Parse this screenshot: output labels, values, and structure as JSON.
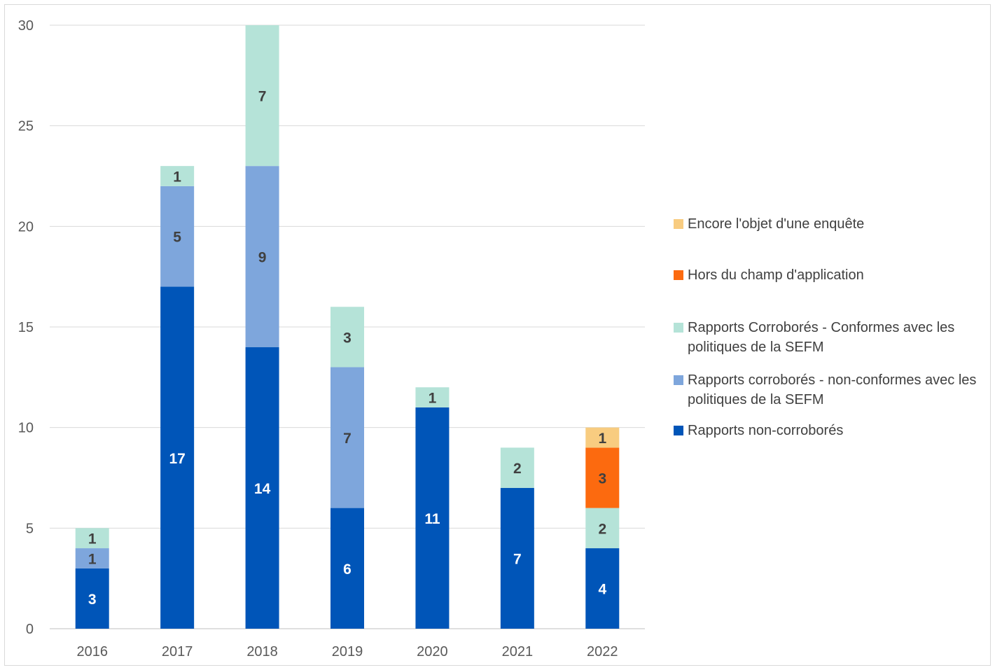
{
  "chart_data": {
    "type": "bar",
    "stacked": true,
    "categories": [
      "2016",
      "2017",
      "2018",
      "2019",
      "2020",
      "2021",
      "2022"
    ],
    "series": [
      {
        "name": "Rapports non-corroborés",
        "color": "#0055b8",
        "label_color": "#ffffff",
        "values": [
          3,
          17,
          14,
          6,
          11,
          7,
          4
        ]
      },
      {
        "name": "Rapports corroborés - non-conformes avec les politiques de la SEFM",
        "color": "#7ea6dc",
        "label_color": "#404040",
        "values": [
          1,
          5,
          9,
          7,
          0,
          0,
          0
        ]
      },
      {
        "name": "Rapports Corroborés - Conformes avec les politiques de la SEFM",
        "color": "#b5e3d8",
        "label_color": "#404040",
        "values": [
          1,
          1,
          7,
          3,
          1,
          2,
          2
        ]
      },
      {
        "name": "Hors du champ d'application",
        "color": "#fc6a0f",
        "label_color": "#404040",
        "values": [
          0,
          0,
          0,
          0,
          0,
          0,
          3
        ]
      },
      {
        "name": "Encore l'objet d'une enquête",
        "color": "#f8cc80",
        "label_color": "#404040",
        "values": [
          0,
          0,
          0,
          0,
          0,
          0,
          1
        ]
      }
    ],
    "yticks": [
      0,
      5,
      10,
      15,
      20,
      25,
      30
    ],
    "ylim": [
      0,
      30
    ],
    "grid": true,
    "legend_position": "right",
    "title": "",
    "xlabel": "",
    "ylabel": ""
  }
}
